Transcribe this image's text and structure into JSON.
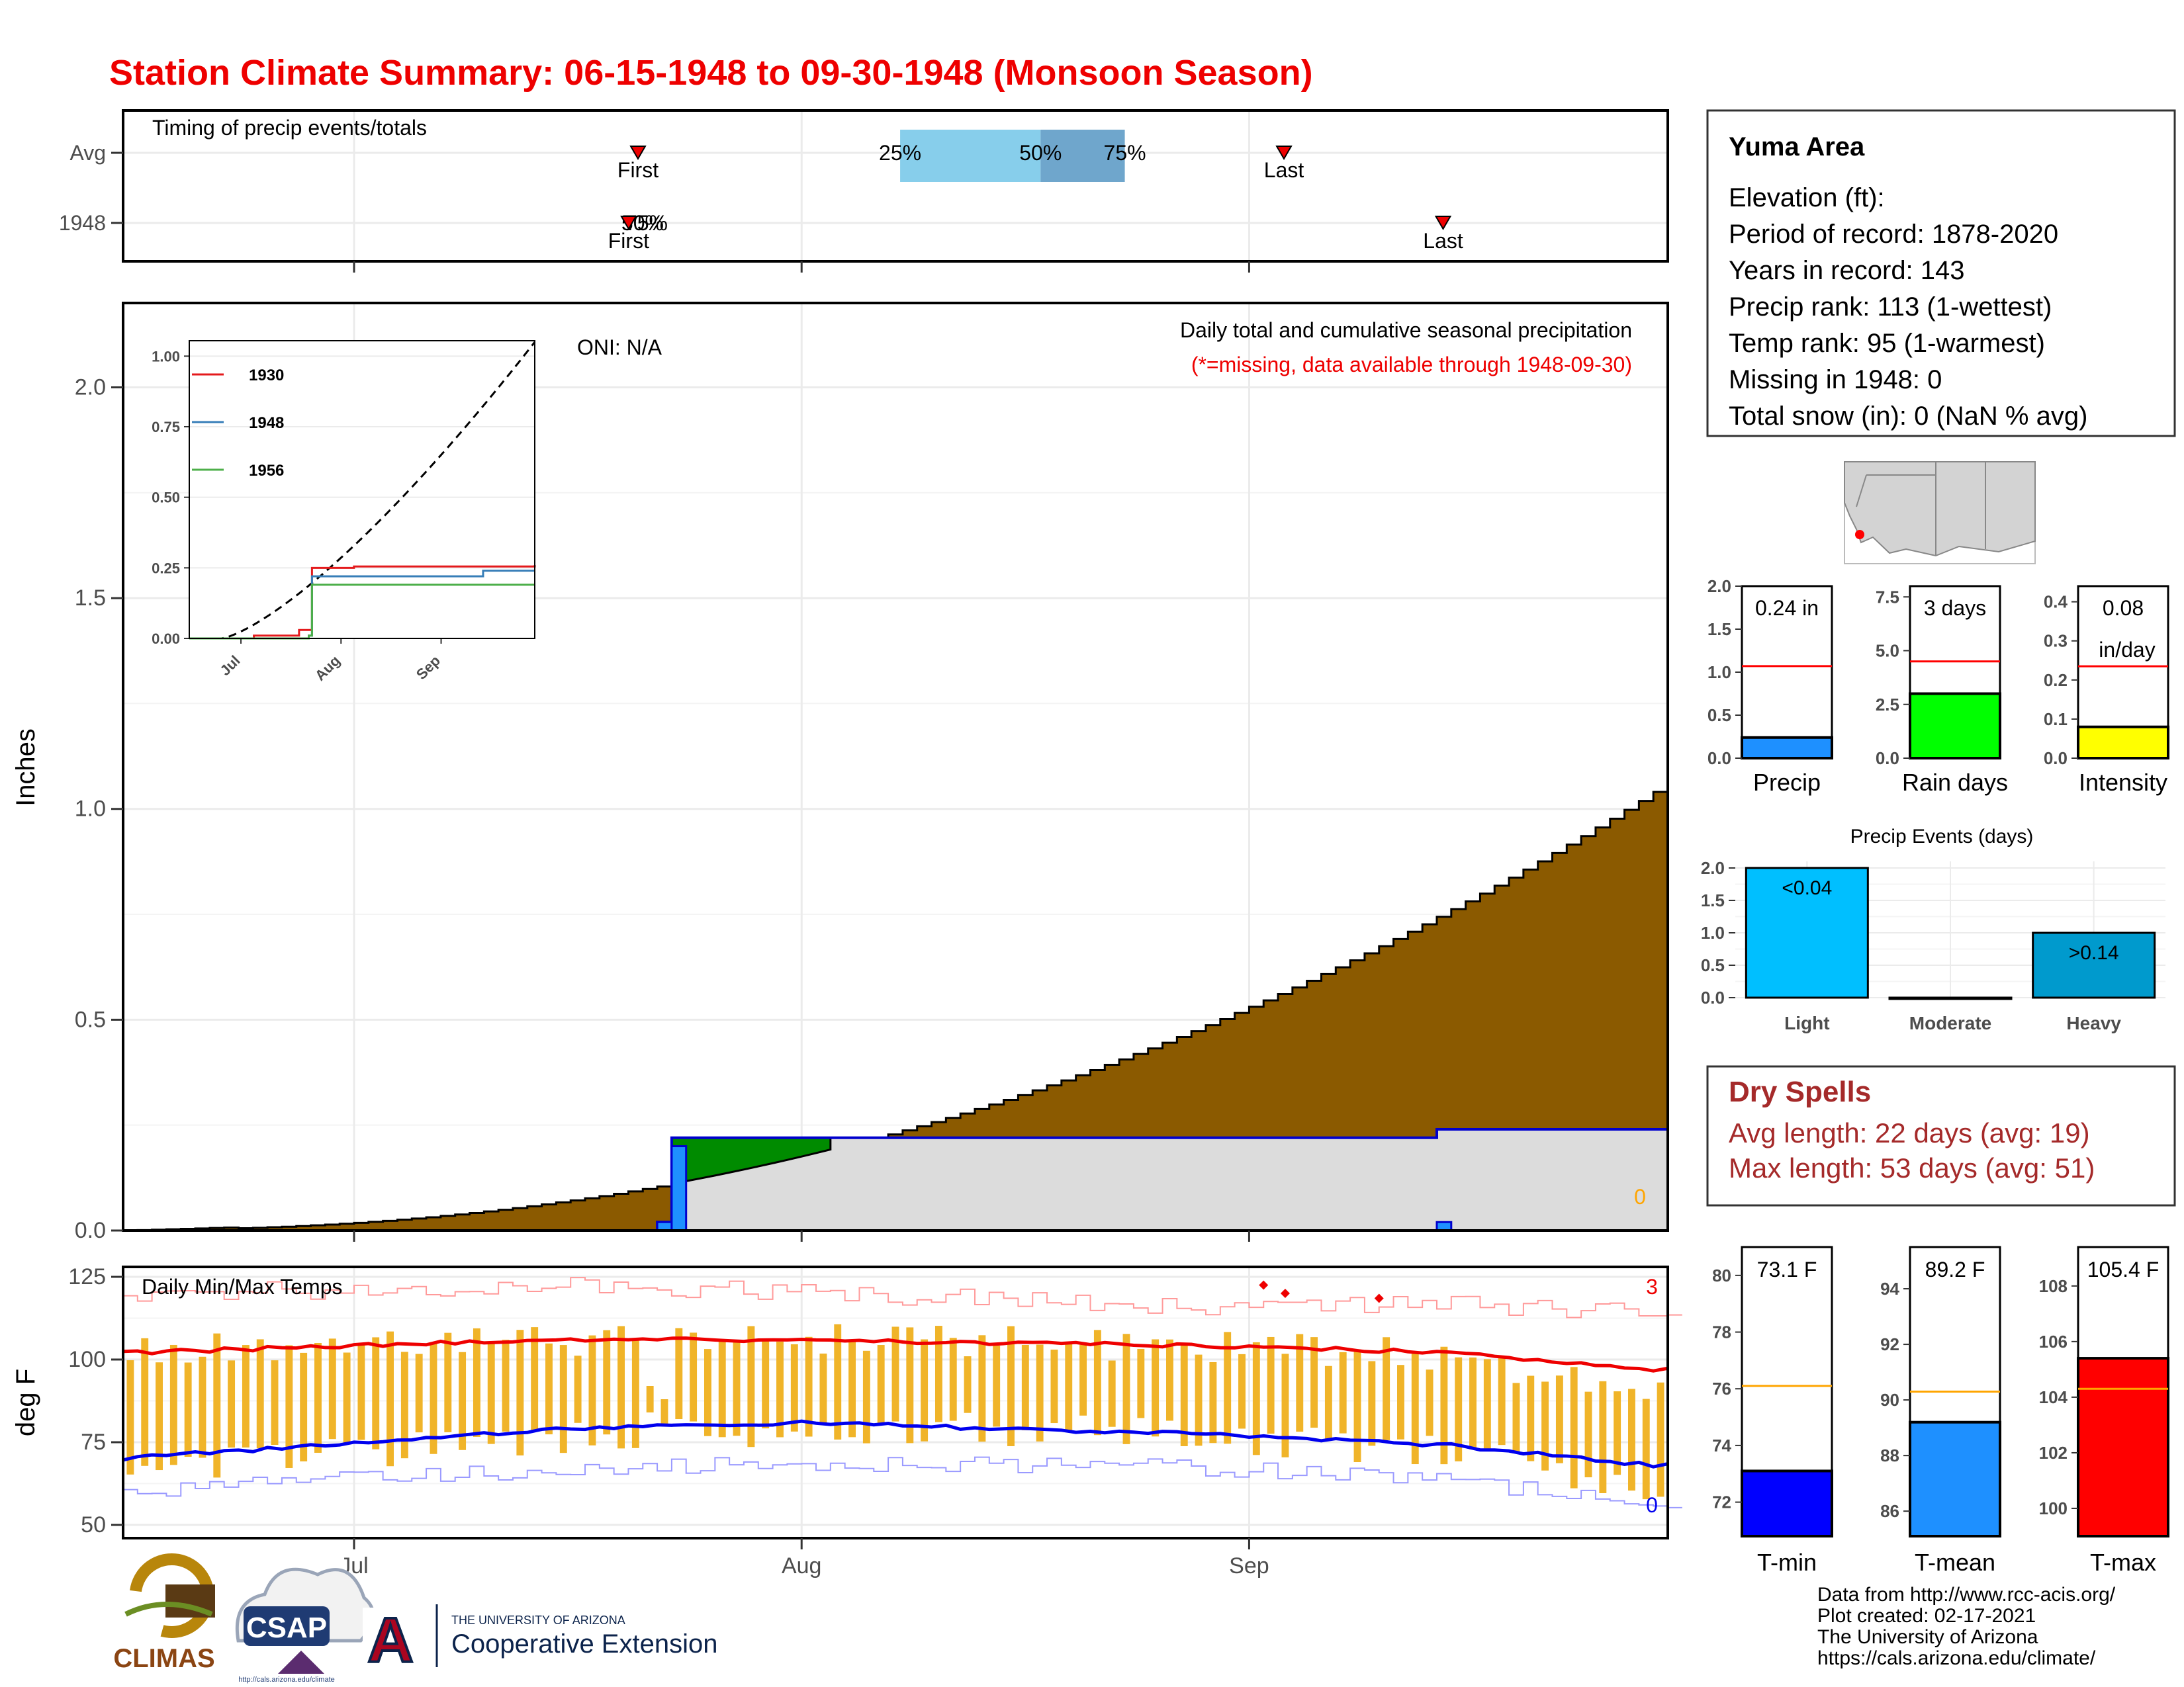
{
  "title": "Station Climate Summary: 06-15-1948 to 09-30-1948 (Monsoon Season)",
  "station": {
    "name": "Yuma Area",
    "lines": [
      "Elevation (ft):",
      "Period of record: 1878-2020",
      "Years in record: 143",
      "Precip rank: 113 (1-wettest)",
      "Temp rank: 95 (1-warmest)",
      "Missing in 1948: 0",
      "Total snow (in): 0 (NaN % avg)"
    ]
  },
  "timing": {
    "title": "Timing of precip events/totals",
    "row_labels": [
      "Avg",
      "1948"
    ],
    "avg_first": "First",
    "avg_last": "Last",
    "p25": "25%",
    "p50": "50%",
    "p75": "75%",
    "y1948_first": "First",
    "y1948_last": "Last",
    "y1948_pct": "75%",
    "y1948_pct2": "50%",
    "avg_first_day": 55,
    "avg_last_day": 124,
    "avg_q25_day": 83,
    "avg_q50_day": 98,
    "avg_q75_day": 107,
    "y1948_first_day": 54,
    "y1948_last_day": 141,
    "y1948_q_day": 54.5
  },
  "main": {
    "ylabel": "Inches",
    "oni": "ONI: N/A",
    "subtitle": "Daily total and cumulative seasonal precipitation",
    "missing_note": "(*=missing, data available through 1948-09-30)",
    "missing_count": "0",
    "month_labels": [
      "Jul",
      "Aug",
      "Sep"
    ],
    "ylim": [
      0,
      2.2
    ],
    "yticks": [
      "0.0",
      "0.5",
      "1.0",
      "1.5",
      "2.0"
    ]
  },
  "inset": {
    "legend": [
      "1930",
      "1948",
      "1956"
    ],
    "legend_colors": [
      "#e41a1c",
      "#377eb8",
      "#4daf4a"
    ],
    "yticks": [
      "0.00",
      "0.25",
      "0.50",
      "0.75",
      "1.00"
    ],
    "xticks": [
      "Jul",
      "Aug",
      "Sep"
    ]
  },
  "temps": {
    "title": "Daily Min/Max Temps",
    "ylabel": "deg F",
    "yticks": [
      "50",
      "75",
      "100",
      "125"
    ],
    "max_count": "3",
    "min_count": "0",
    "month_labels": [
      "Jul",
      "Aug",
      "Sep"
    ]
  },
  "bars": {
    "precip": {
      "label": "Precip",
      "value_text": "0.24 in",
      "value": 0.24,
      "avg": 1.07,
      "ymax": 2.0,
      "yticks": [
        "0.0",
        "0.5",
        "1.0",
        "1.5",
        "2.0"
      ],
      "color": "#1e90ff"
    },
    "raindays": {
      "label": "Rain days",
      "value_text": "3 days",
      "value": 3,
      "avg": 4.5,
      "ymax": 8.0,
      "yticks": [
        "0.0",
        "2.5",
        "5.0",
        "7.5"
      ],
      "color": "#00ff00"
    },
    "intensity": {
      "label": "Intensity",
      "value_text": "0.08",
      "value_text2": "in/day",
      "value": 0.08,
      "avg": 0.235,
      "ymax": 0.44,
      "yticks": [
        "0.0",
        "0.1",
        "0.2",
        "0.3",
        "0.4"
      ],
      "color": "#ffff00"
    }
  },
  "events": {
    "title": "Precip Events (days)",
    "categories": [
      "Light",
      "Moderate",
      "Heavy"
    ],
    "values": [
      2,
      0,
      1
    ],
    "bar_labels": [
      "<0.04",
      "",
      ">0.14"
    ],
    "yticks": [
      "0.0",
      "0.5",
      "1.0",
      "1.5",
      "2.0"
    ],
    "colors": [
      "#00bfff",
      "#1e90ff",
      "#009acd"
    ]
  },
  "dry": {
    "title": "Dry Spells",
    "avg_length": "Avg length: 22 days (avg: 19)",
    "max_length": "Max length: 53 days (avg: 51)"
  },
  "temp_bars": {
    "tmin": {
      "label": "T-min",
      "value_text": "73.1 F",
      "value": 73.1,
      "avg": 76.1,
      "ymin": 70.8,
      "ymax": 81.0,
      "yticks": [
        "72",
        "74",
        "76",
        "78",
        "80"
      ],
      "color": "#0000ff"
    },
    "tmean": {
      "label": "T-mean",
      "value_text": "89.2 F",
      "value": 89.2,
      "avg": 90.3,
      "ymin": 85.1,
      "ymax": 95.5,
      "yticks": [
        "86",
        "88",
        "90",
        "92",
        "94"
      ],
      "color": "#1e90ff"
    },
    "tmax": {
      "label": "T-max",
      "value_text": "105.4 F",
      "value": 105.4,
      "avg": 104.3,
      "ymin": 99.0,
      "ymax": 109.4,
      "yticks": [
        "100",
        "102",
        "104",
        "106",
        "108"
      ],
      "color": "#ff0000"
    }
  },
  "footer": {
    "lines": [
      "Data from http://www.rcc-acis.org/",
      "Plot created: 02-17-2021",
      "The University of Arizona",
      "https://cals.arizona.edu/climate/"
    ],
    "logo_climas": "CLIMAS",
    "logo_csap": "CSAP",
    "logo_csap_url": "http://cals.arizona.edu/climate",
    "logo_ua_small": "THE UNIVERSITY OF ARIZONA",
    "logo_ua_big": "Cooperative Extension"
  },
  "chart_data": [
    {
      "type": "area",
      "title": "Daily total and cumulative seasonal precipitation",
      "ylabel": "Inches",
      "ylim": [
        0,
        2.2
      ],
      "series": [
        {
          "name": "1948",
          "description_series": "cumulative",
          "x": [
            "06-15",
            "07-23",
            "07-24",
            "08-01",
            "09-14",
            "09-30"
          ],
          "y": [
            0.0,
            0.02,
            0.22,
            0.22,
            0.24,
            0.24
          ]
        }
      ]
    },
    {
      "type": "line",
      "ylabel": "deg F",
      "ylim": [
        46,
        128
      ],
      "series": [
        {
          "name": "avg max",
          "x": [
            "06-15",
            "07-15",
            "08-01",
            "08-15",
            "09-01",
            "09-15",
            "09-30"
          ],
          "y": [
            102,
            106,
            106,
            105,
            104,
            102,
            97
          ]
        },
        {
          "name": "avg min",
          "x": [
            "06-15",
            "07-15",
            "08-01",
            "08-15",
            "09-01",
            "09-15",
            "09-30"
          ],
          "y": [
            70,
            79,
            81,
            79,
            77,
            74,
            68
          ]
        }
      ]
    }
  ]
}
